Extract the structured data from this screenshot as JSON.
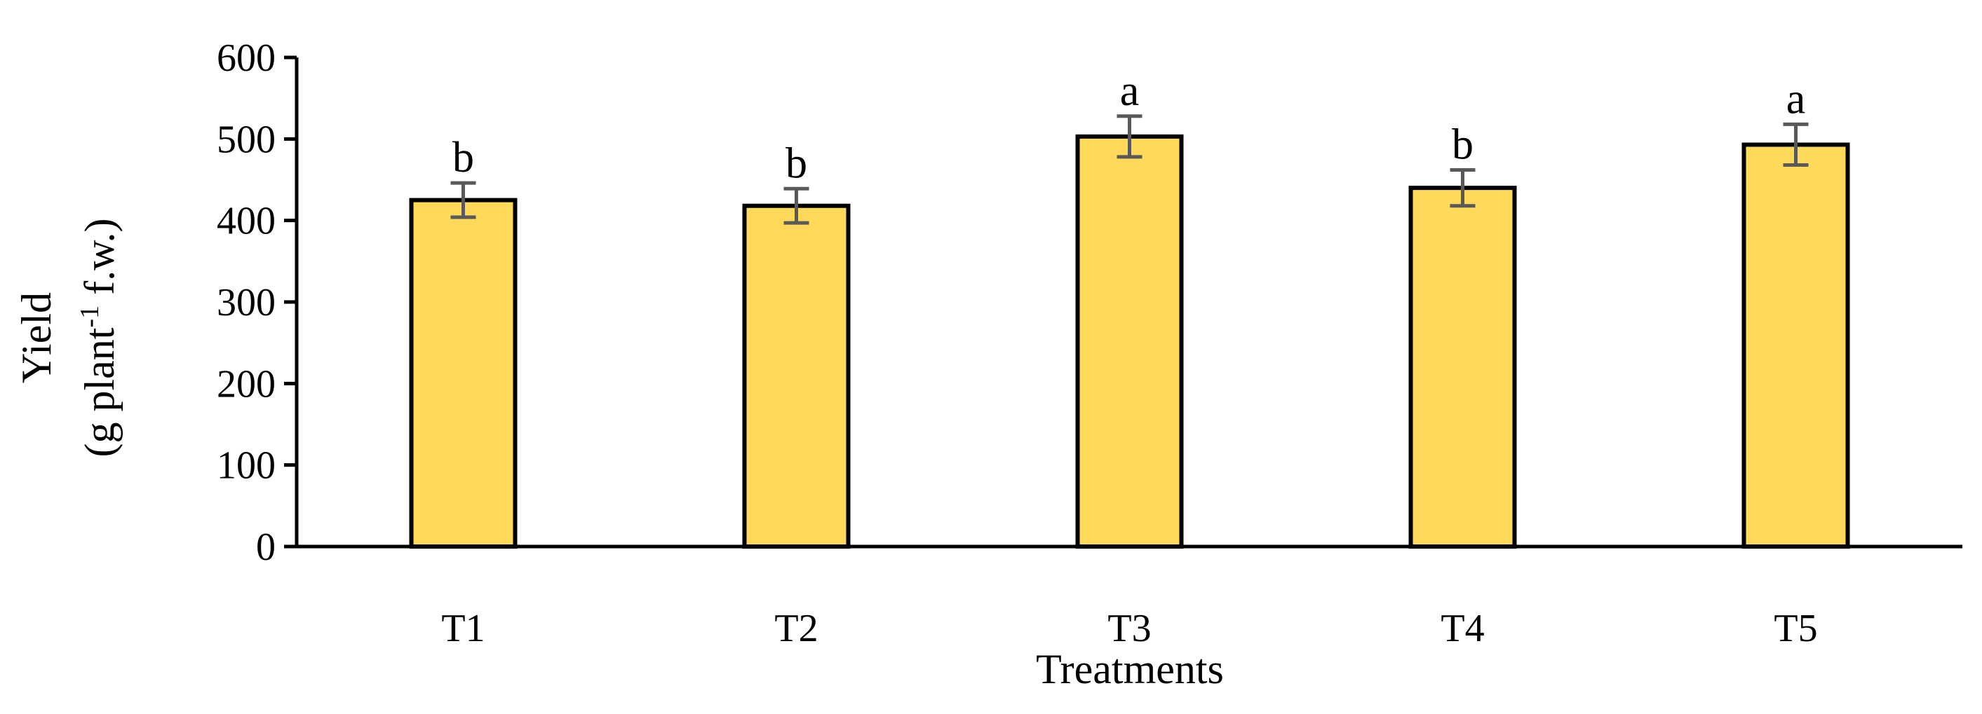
{
  "chart_data": {
    "type": "bar",
    "categories": [
      "T1",
      "T2",
      "T3",
      "T4",
      "T5"
    ],
    "values": [
      425,
      418,
      503,
      440,
      493
    ],
    "errors": [
      21,
      21,
      25,
      22,
      25
    ],
    "significance": [
      "b",
      "b",
      "a",
      "b",
      "a"
    ],
    "ylim": [
      0,
      600
    ],
    "yticks": [
      0,
      100,
      200,
      300,
      400,
      500,
      600
    ],
    "xlabel": "Treatments",
    "ylabel_line1": "Yield",
    "ylabel_line2_pre": "(g plant",
    "ylabel_sup": "-1",
    "ylabel_line2_post": " f.w.)",
    "bar_color": "#FFD95A",
    "bar_edge_color": "#000000",
    "error_color": "#595959",
    "grid": false
  }
}
